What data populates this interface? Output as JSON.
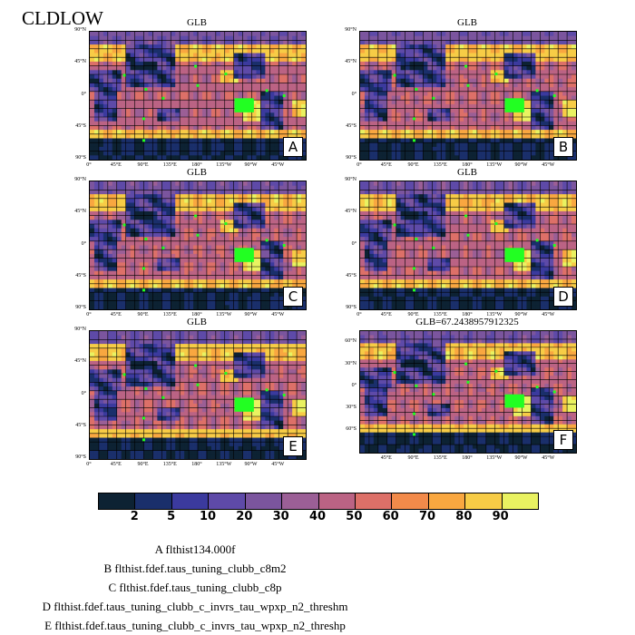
{
  "title": "CLDLOW",
  "panels": [
    {
      "letter": "A",
      "title": "GLB"
    },
    {
      "letter": "B",
      "title": "GLB"
    },
    {
      "letter": "C",
      "title": "GLB"
    },
    {
      "letter": "D",
      "title": "GLB"
    },
    {
      "letter": "E",
      "title": "GLB"
    },
    {
      "letter": "F",
      "title": "GLB=67.2438957912325"
    }
  ],
  "lat_ticks_global": [
    "90°N",
    "45°N",
    "0°",
    "45°S",
    "90°S"
  ],
  "lon_ticks_global": [
    "0°",
    "45°E",
    "90°E",
    "135°E",
    "180°",
    "135°W",
    "90°W",
    "45°W"
  ],
  "lat_ticks_f": [
    "60°N",
    "30°N",
    "0°",
    "30°S",
    "60°S"
  ],
  "lon_ticks_f": [
    "45°E",
    "90°E",
    "135°E",
    "180°",
    "135°W",
    "90°W",
    "45°W"
  ],
  "colorbar": {
    "colors": [
      "#0d2233",
      "#1a2f6b",
      "#3b3a9e",
      "#5e4aa8",
      "#7b559e",
      "#9b5f96",
      "#bb6384",
      "#dd7068",
      "#f28a4a",
      "#f9a740",
      "#f7cc46",
      "#e9f261"
    ],
    "labels": [
      "2",
      "5",
      "10",
      "20",
      "30",
      "40",
      "50",
      "60",
      "70",
      "80",
      "90"
    ]
  },
  "legend": [
    "A  flthist134.000f",
    "B  flthist.fdef.taus_tuning_clubb_c8m2",
    "C  flthist.fdef.taus_tuning_clubb_c8p",
    "D  flthist.fdef.taus_tuning_clubb_c_invrs_tau_wpxp_n2_threshm",
    "E  flthist.fdef.taus_tuning_clubb_c_invrs_tau_wpxp_n2_threshp"
  ]
}
